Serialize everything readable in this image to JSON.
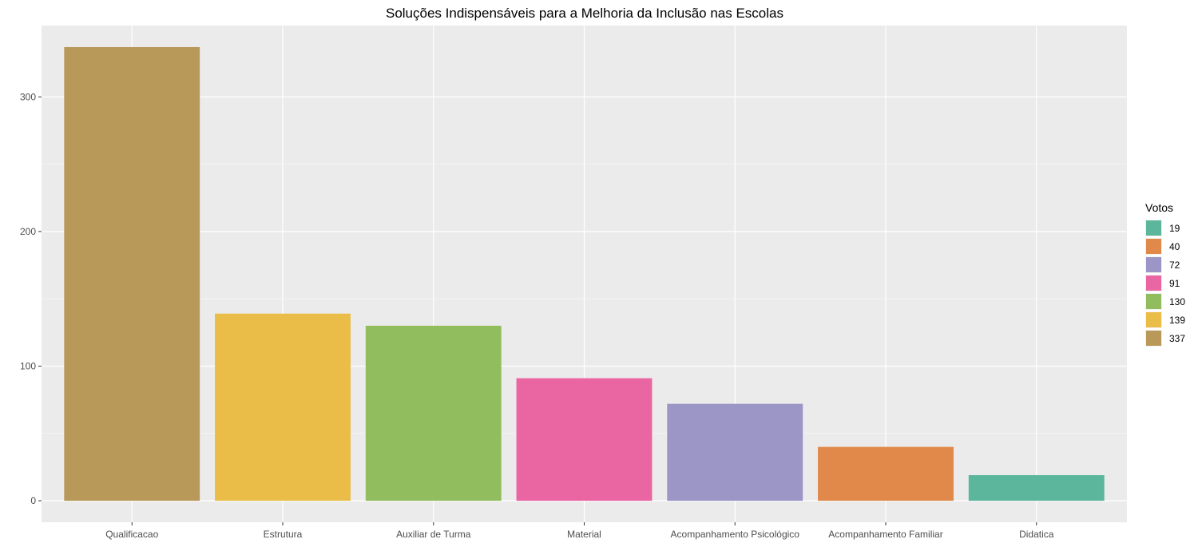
{
  "chart_data": {
    "type": "bar",
    "title": "Soluções Indispensáveis para a Melhoria da Inclusão nas Escolas",
    "xlabel": "",
    "ylabel": "",
    "categories": [
      "Qualificacao",
      "Estrutura",
      "Auxiliar de Turma",
      "Material",
      "Acompanhamento Psicológico",
      "Acompanhamento Familiar",
      "Didatica"
    ],
    "values": [
      337,
      139,
      130,
      91,
      72,
      40,
      19
    ],
    "colors": [
      "#b8995a",
      "#e9bd47",
      "#91bd5f",
      "#e966a3",
      "#9c96c6",
      "#e0894a",
      "#5bb69c"
    ],
    "ylim": [
      -16,
      353
    ],
    "yticks": [
      0,
      100,
      200,
      300
    ],
    "grid": true,
    "legend": {
      "title": "Votos",
      "position": "right",
      "entries": [
        {
          "label": "19",
          "color": "#5bb69c"
        },
        {
          "label": "40",
          "color": "#e0894a"
        },
        {
          "label": "72",
          "color": "#9c96c6"
        },
        {
          "label": "91",
          "color": "#e966a3"
        },
        {
          "label": "130",
          "color": "#91bd5f"
        },
        {
          "label": "139",
          "color": "#e9bd47"
        },
        {
          "label": "337",
          "color": "#b8995a"
        }
      ]
    }
  }
}
